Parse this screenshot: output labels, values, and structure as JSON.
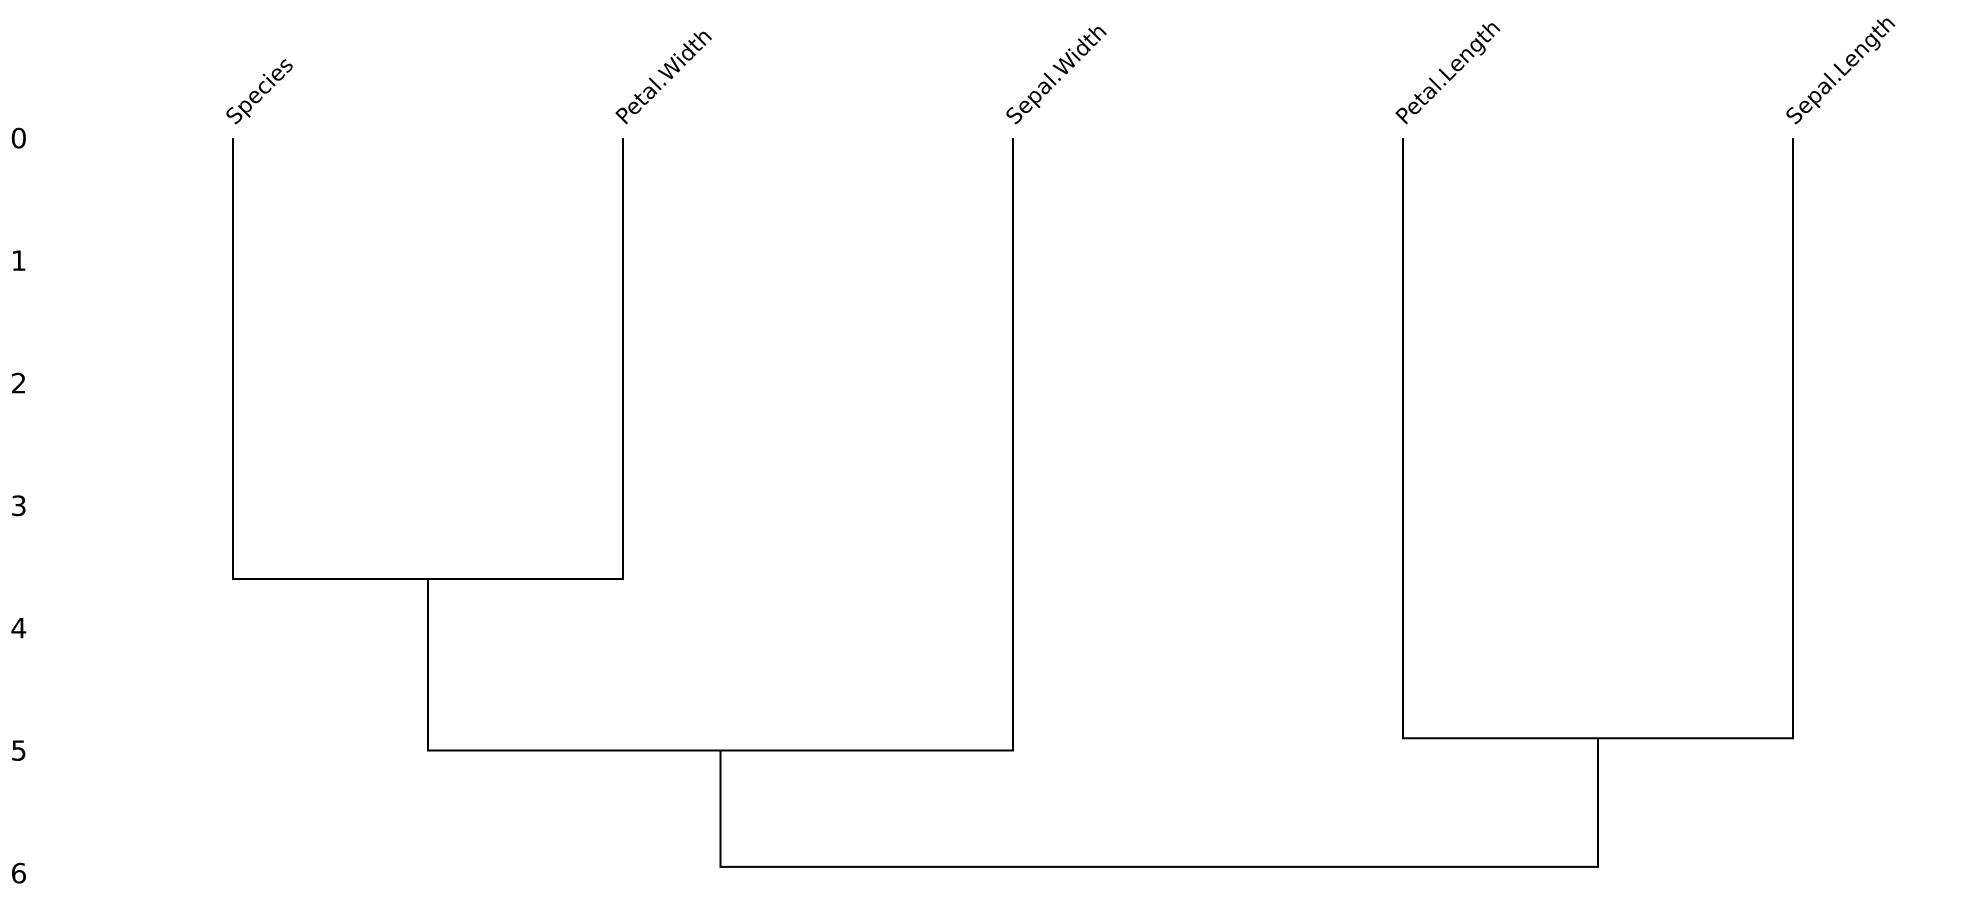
{
  "chart_data": {
    "type": "dendrogram",
    "title": "",
    "xlabel": "",
    "ylabel": "",
    "y_ticks": [
      "0",
      "1",
      "2",
      "3",
      "4",
      "5",
      "6"
    ],
    "ylim": [
      0,
      6
    ],
    "y_inverted": true,
    "grid": false,
    "leaves": [
      "Species",
      "Petal.Width",
      "Sepal.Width",
      "Petal.Length",
      "Sepal.Length"
    ],
    "merges": [
      {
        "left": "Species",
        "right": "Petal.Width",
        "height": 3.6
      },
      {
        "left": "Species + Petal.Width",
        "right": "Sepal.Width",
        "height": 5.0
      },
      {
        "left": "Petal.Length",
        "right": "Sepal.Length",
        "height": 4.9
      },
      {
        "left": "Species + Petal.Width + Sepal.Width",
        "right": "Petal.Length + Sepal.Length",
        "height": 5.95
      }
    ],
    "line_color": "#000000"
  }
}
